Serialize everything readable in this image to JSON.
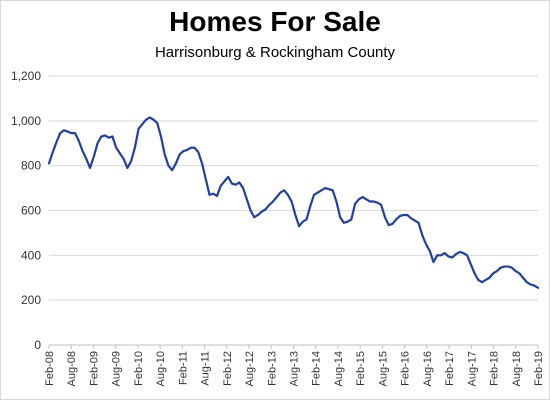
{
  "chart_data": {
    "type": "line",
    "title": "Homes For Sale",
    "subtitle": "Harrisonburg & Rockingham County",
    "xlabel": "",
    "ylabel": "",
    "ylim": [
      0,
      1200
    ],
    "yticks": [
      "0",
      "200",
      "400",
      "600",
      "800",
      "1,000",
      "1,200"
    ],
    "grid": true,
    "legend": "none",
    "line_color": "#1f3fa8",
    "grid_color": "#d9d9d9",
    "xtick_labels": [
      "Feb-08",
      "Aug-08",
      "Feb-09",
      "Aug-09",
      "Feb-10",
      "Aug-10",
      "Feb-11",
      "Aug-11",
      "Feb-12",
      "Aug-12",
      "Feb-13",
      "Aug-13",
      "Feb-14",
      "Aug-14",
      "Feb-15",
      "Aug-15",
      "Feb-16",
      "Aug-16",
      "Feb-17",
      "Aug-17",
      "Feb-18",
      "Aug-18",
      "Feb-19"
    ],
    "series": [
      {
        "values": [
          810,
          860,
          905,
          945,
          958,
          952,
          945,
          945,
          910,
          865,
          830,
          790,
          840,
          900,
          930,
          935,
          925,
          930,
          880,
          855,
          830,
          790,
          820,
          880,
          965,
          985,
          1005,
          1015,
          1005,
          990,
          930,
          850,
          800,
          780,
          810,
          850,
          865,
          870,
          880,
          880,
          860,
          810,
          740,
          670,
          675,
          665,
          710,
          730,
          750,
          720,
          715,
          725,
          700,
          650,
          600,
          570,
          580,
          595,
          605,
          625,
          640,
          660,
          680,
          690,
          670,
          640,
          580,
          530,
          550,
          560,
          620,
          670,
          680,
          690,
          700,
          695,
          690,
          640,
          570,
          545,
          550,
          560,
          630,
          650,
          660,
          650,
          640,
          640,
          635,
          625,
          570,
          535,
          540,
          560,
          575,
          580,
          580,
          565,
          555,
          545,
          490,
          450,
          420,
          370,
          400,
          400,
          410,
          395,
          390,
          405,
          415,
          410,
          400,
          360,
          320,
          290,
          280,
          290,
          300,
          320,
          330,
          345,
          350,
          350,
          345,
          330,
          320,
          300,
          280,
          270,
          265,
          255
        ]
      }
    ]
  }
}
